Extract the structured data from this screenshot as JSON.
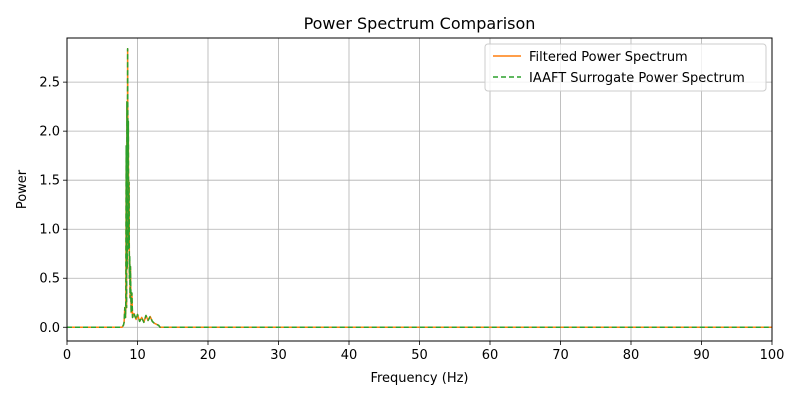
{
  "chart_data": {
    "type": "line",
    "title": "Power Spectrum Comparison",
    "xlabel": "Frequency (Hz)",
    "ylabel": "Power",
    "xlim": [
      0,
      100
    ],
    "ylim": [
      -0.14,
      2.95
    ],
    "x_ticks": [
      0,
      10,
      20,
      30,
      40,
      50,
      60,
      70,
      80,
      90,
      100
    ],
    "y_ticks": [
      0.0,
      0.5,
      1.0,
      1.5,
      2.0,
      2.5
    ],
    "x_tick_labels": [
      "0",
      "10",
      "20",
      "30",
      "40",
      "50",
      "60",
      "70",
      "80",
      "90",
      "100"
    ],
    "y_tick_labels": [
      "0.0",
      "0.5",
      "1.0",
      "1.5",
      "2.0",
      "2.5"
    ],
    "grid": true,
    "legend_position": "top-right",
    "series": [
      {
        "name": "Filtered Power Spectrum",
        "color": "#ff7f0e",
        "style": "solid",
        "x": [
          0,
          7.8,
          8.0,
          8.1,
          8.2,
          8.3,
          8.35,
          8.4,
          8.45,
          8.5,
          8.55,
          8.6,
          8.65,
          8.7,
          8.75,
          8.8,
          8.85,
          8.9,
          8.95,
          9.0,
          9.1,
          9.2,
          9.3,
          9.5,
          9.8,
          10.0,
          10.3,
          10.6,
          10.9,
          11.2,
          11.5,
          11.8,
          12.1,
          12.4,
          12.7,
          13.0,
          13.2,
          100
        ],
        "y": [
          0,
          0,
          0.02,
          0.05,
          0.2,
          0.1,
          0.3,
          1.85,
          0.2,
          2.3,
          0.6,
          2.84,
          1.5,
          2.1,
          0.8,
          1.48,
          0.5,
          0.72,
          0.3,
          0.62,
          0.15,
          0.35,
          0.1,
          0.14,
          0.08,
          0.13,
          0.06,
          0.1,
          0.05,
          0.12,
          0.07,
          0.11,
          0.06,
          0.04,
          0.03,
          0.02,
          0.0,
          0
        ]
      },
      {
        "name": "IAAFT Surrogate Power Spectrum",
        "color": "#2ca02c",
        "style": "dashed",
        "x": [
          0,
          7.8,
          8.0,
          8.1,
          8.2,
          8.3,
          8.35,
          8.4,
          8.45,
          8.5,
          8.55,
          8.6,
          8.65,
          8.7,
          8.75,
          8.8,
          8.85,
          8.9,
          8.95,
          9.0,
          9.1,
          9.2,
          9.3,
          9.5,
          9.8,
          10.0,
          10.3,
          10.6,
          10.9,
          11.2,
          11.5,
          11.8,
          12.1,
          12.4,
          12.7,
          13.0,
          13.2,
          100
        ],
        "y": [
          0,
          0,
          0.02,
          0.05,
          0.2,
          0.1,
          0.3,
          1.85,
          0.2,
          2.3,
          0.6,
          2.84,
          1.5,
          2.1,
          0.8,
          1.48,
          0.5,
          0.72,
          0.3,
          0.62,
          0.15,
          0.35,
          0.1,
          0.14,
          0.08,
          0.13,
          0.06,
          0.1,
          0.05,
          0.12,
          0.07,
          0.11,
          0.06,
          0.04,
          0.03,
          0.02,
          0.0,
          0
        ]
      }
    ]
  }
}
